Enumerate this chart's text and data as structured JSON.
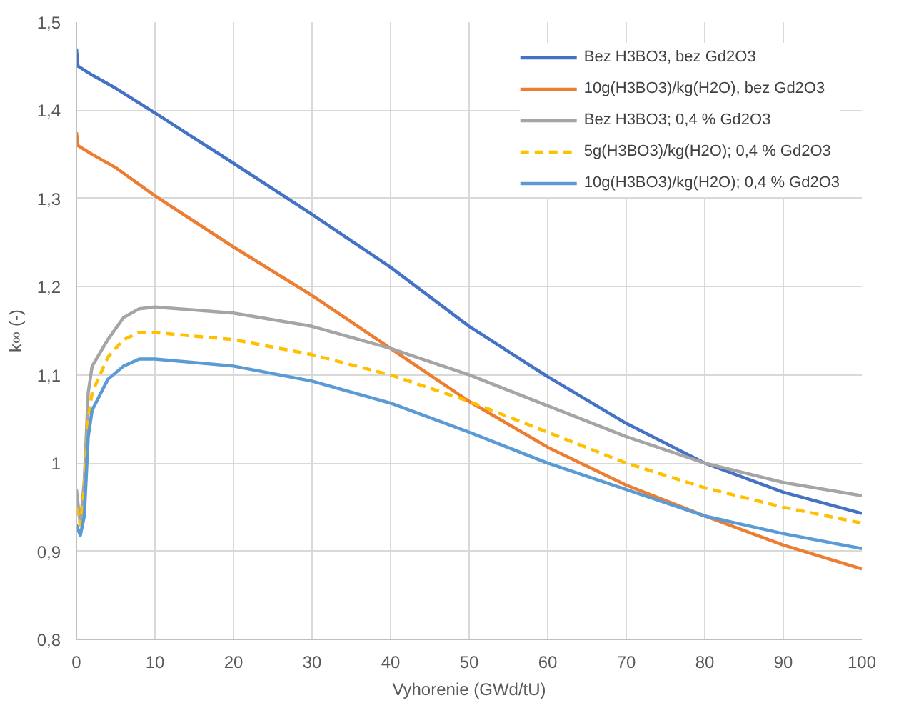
{
  "chart_data": {
    "type": "line",
    "xlabel": "Vyhorenie (GWd/tU)",
    "ylabel": "k∞ (-)",
    "xlim": [
      0,
      100
    ],
    "ylim": [
      0.8,
      1.5
    ],
    "xticks": [
      0,
      10,
      20,
      30,
      40,
      50,
      60,
      70,
      80,
      90,
      100
    ],
    "yticks": [
      {
        "value": 0.8,
        "label": "0,8"
      },
      {
        "value": 0.9,
        "label": "0,9"
      },
      {
        "value": 1.0,
        "label": "1"
      },
      {
        "value": 1.1,
        "label": "1,1"
      },
      {
        "value": 1.2,
        "label": "1,2"
      },
      {
        "value": 1.3,
        "label": "1,3"
      },
      {
        "value": 1.4,
        "label": "1,4"
      },
      {
        "value": 1.5,
        "label": "1,5"
      }
    ],
    "grid": true,
    "legend": "top right",
    "marker": "none",
    "series": [
      {
        "name": "Bez H3BO3, bez Gd2O3",
        "color": "#4472c4",
        "line_style": "solid",
        "x": [
          0,
          0.2,
          2,
          5,
          10,
          20,
          30,
          40,
          50,
          60,
          70,
          80,
          90,
          100
        ],
        "values": [
          1.47,
          1.45,
          1.44,
          1.425,
          1.397,
          1.34,
          1.282,
          1.222,
          1.155,
          1.098,
          1.045,
          1.0,
          0.967,
          0.943
        ]
      },
      {
        "name": "10g(H3BO3)/kg(H2O), bez Gd2O3",
        "color": "#ed7d31",
        "line_style": "solid",
        "x": [
          0,
          0.2,
          2,
          5,
          10,
          20,
          30,
          40,
          50,
          60,
          70,
          80,
          90,
          100
        ],
        "values": [
          1.375,
          1.36,
          1.35,
          1.335,
          1.303,
          1.245,
          1.19,
          1.13,
          1.07,
          1.018,
          0.975,
          0.94,
          0.907,
          0.88
        ]
      },
      {
        "name": "Bez H3BO3; 0,4 % Gd2O3",
        "color": "#a5a5a5",
        "line_style": "solid",
        "x": [
          0,
          0.5,
          1,
          1.5,
          2,
          4,
          6,
          8,
          10,
          20,
          30,
          40,
          50,
          60,
          70,
          80,
          90,
          100
        ],
        "values": [
          0.97,
          0.93,
          0.98,
          1.08,
          1.11,
          1.14,
          1.165,
          1.175,
          1.177,
          1.17,
          1.155,
          1.13,
          1.1,
          1.065,
          1.03,
          1.0,
          0.978,
          0.963
        ]
      },
      {
        "name": "5g(H3BO3)/kg(H2O); 0,4 % Gd2O3",
        "color": "#ffc000",
        "line_style": "dashed",
        "x": [
          0,
          0.5,
          1,
          1.5,
          2,
          4,
          6,
          8,
          10,
          20,
          30,
          40,
          50,
          60,
          70,
          80,
          90,
          100
        ],
        "values": [
          0.95,
          0.93,
          0.97,
          1.05,
          1.08,
          1.12,
          1.14,
          1.148,
          1.148,
          1.14,
          1.123,
          1.1,
          1.07,
          1.035,
          1.0,
          0.972,
          0.95,
          0.932
        ]
      },
      {
        "name": "10g(H3BO3)/kg(H2O); 0,4 % Gd2O3",
        "color": "#5b9bd5",
        "line_style": "solid",
        "x": [
          0,
          0.5,
          1,
          1.5,
          2,
          4,
          6,
          8,
          10,
          20,
          30,
          40,
          50,
          60,
          70,
          80,
          90,
          100
        ],
        "values": [
          0.93,
          0.918,
          0.94,
          1.03,
          1.06,
          1.095,
          1.11,
          1.118,
          1.118,
          1.11,
          1.093,
          1.068,
          1.035,
          1.0,
          0.97,
          0.94,
          0.92,
          0.903
        ]
      }
    ]
  }
}
